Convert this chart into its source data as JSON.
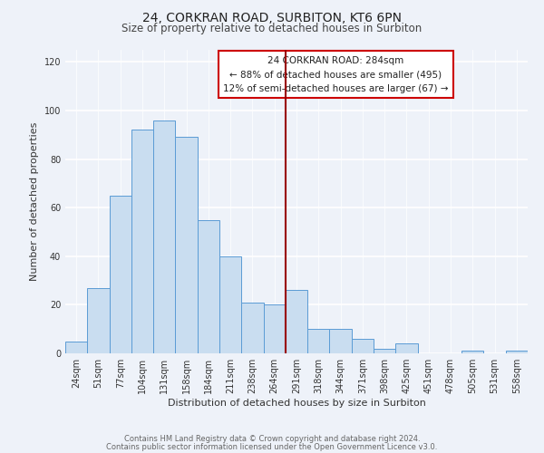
{
  "title": "24, CORKRAN ROAD, SURBITON, KT6 6PN",
  "subtitle": "Size of property relative to detached houses in Surbiton",
  "xlabel": "Distribution of detached houses by size in Surbiton",
  "ylabel": "Number of detached properties",
  "bar_labels": [
    "24sqm",
    "51sqm",
    "77sqm",
    "104sqm",
    "131sqm",
    "158sqm",
    "184sqm",
    "211sqm",
    "238sqm",
    "264sqm",
    "291sqm",
    "318sqm",
    "344sqm",
    "371sqm",
    "398sqm",
    "425sqm",
    "451sqm",
    "478sqm",
    "505sqm",
    "531sqm",
    "558sqm"
  ],
  "bar_values": [
    5,
    27,
    65,
    92,
    96,
    89,
    55,
    40,
    21,
    20,
    26,
    10,
    10,
    6,
    2,
    4,
    0,
    0,
    1,
    0,
    1
  ],
  "bar_color": "#c9ddf0",
  "bar_edge_color": "#5b9bd5",
  "ylim": [
    0,
    125
  ],
  "yticks": [
    0,
    20,
    40,
    60,
    80,
    100,
    120
  ],
  "annotation_title": "24 CORKRAN ROAD: 284sqm",
  "annotation_line1": "← 88% of detached houses are smaller (495)",
  "annotation_line2": "12% of semi-detached houses are larger (67) →",
  "vline_x_index": 9.5,
  "footer_line1": "Contains HM Land Registry data © Crown copyright and database right 2024.",
  "footer_line2": "Contains public sector information licensed under the Open Government Licence v3.0.",
  "background_color": "#eef2f9",
  "grid_color": "#ffffff",
  "title_fontsize": 10,
  "subtitle_fontsize": 8.5,
  "axis_label_fontsize": 8,
  "tick_fontsize": 7,
  "annotation_fontsize": 7.5,
  "footer_fontsize": 6
}
